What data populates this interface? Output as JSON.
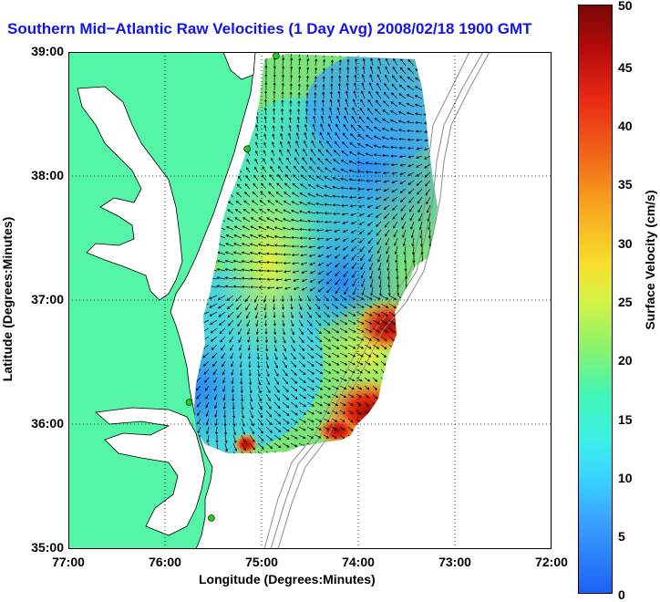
{
  "title": "Southern Mid−Atlantic Raw Velocities (1 Day Avg) 2008/02/18 1900 GMT",
  "axes": {
    "xlabel": "Longitude (Degrees:Minutes)",
    "ylabel": "Latitude (Degrees:Minutes)",
    "xticks": [
      "77:00",
      "76:00",
      "75:00",
      "74:00",
      "73:00",
      "72:00"
    ],
    "yticks": [
      "39:00",
      "38:00",
      "37:00",
      "36:00",
      "35:00"
    ]
  },
  "colorbar": {
    "label": "Surface Velocity (cm/s)",
    "ticks": [
      "0",
      "5",
      "10",
      "15",
      "20",
      "25",
      "30",
      "35",
      "40",
      "45",
      "50"
    ],
    "range": [
      0,
      50
    ]
  },
  "colors": {
    "title": "#1414e6",
    "land": "#55f5a8",
    "water": "#ffffff",
    "coast": "#000000",
    "bathymetry": "#808080",
    "station": "#22cc22",
    "vectors": "#000000"
  },
  "map_data": {
    "lon_range": [
      -77,
      -72
    ],
    "lat_range": [
      35,
      39
    ],
    "grid": true,
    "stations": [
      {
        "lon": -74.85,
        "lat": 38.97
      },
      {
        "lon": -75.15,
        "lat": 38.22
      },
      {
        "lon": -75.75,
        "lat": 36.18
      },
      {
        "lon": -75.52,
        "lat": 35.25
      }
    ],
    "velocity_field": {
      "units": "cm/s",
      "zones": [
        {
          "region": "central shelf",
          "speed": 17
        },
        {
          "region": "northern offshore",
          "speed": 10
        },
        {
          "region": "south-central offshore",
          "speed": 8
        },
        {
          "region": "nearshore band",
          "speed": 24
        },
        {
          "region": "offshore near 36:45 N 73:45 W",
          "speed": 47
        },
        {
          "region": "offshore near 36:15 N 73:45 W",
          "speed": 48
        },
        {
          "region": "southern edge near 35:55 N 75:15 W",
          "speed": 40
        }
      ]
    }
  }
}
